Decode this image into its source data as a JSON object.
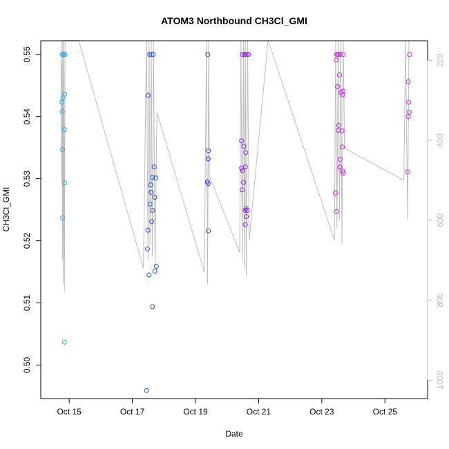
{
  "chart_data": {
    "type": "scatter",
    "title": "ATOM3 Northbound CH3Cl_GMI",
    "xlabel": "Date",
    "ylabel": "CH3Cl_GMI",
    "x_unit": "day of October 2017",
    "xlim": [
      14.1,
      26.35
    ],
    "ylim": [
      0.4946,
      0.5522
    ],
    "x_ticks": [
      15,
      17,
      19,
      21,
      23,
      25
    ],
    "x_tick_labels": [
      "Oct 15",
      "Oct 17",
      "Oct 19",
      "Oct 21",
      "Oct 23",
      "Oct 25"
    ],
    "y_ticks": [
      0.5,
      0.51,
      0.52,
      0.53,
      0.54,
      0.55
    ],
    "y_tick_labels": [
      "0.50",
      "0.51",
      "0.52",
      "0.53",
      "0.54",
      "0.55"
    ],
    "right_axis": {
      "lim": [
        1046,
        151
      ],
      "ticks": [
        200,
        400,
        600,
        800,
        1000
      ],
      "tick_labels": [
        "200",
        "400",
        "600",
        "800",
        "1000"
      ],
      "color": "#bdbdbd"
    },
    "grid": false,
    "legend": "none",
    "colors": {
      "profile_line": "#bdbdbd",
      "flight_1": "#29a9e8",
      "flight_2": "#1e50e8",
      "flight_3": "#3c2ee8",
      "flight_4": "#8a22e0",
      "flight_5": "#c81ee0",
      "flight_6": "#d81ccc"
    },
    "profile_line": [
      [
        14.74,
        200
      ],
      [
        14.76,
        500
      ],
      [
        14.77,
        150
      ],
      [
        14.79,
        700
      ],
      [
        14.8,
        150
      ],
      [
        14.82,
        760
      ],
      [
        14.83,
        150
      ],
      [
        14.85,
        780
      ],
      [
        14.87,
        150
      ],
      [
        15.3,
        150
      ],
      [
        17.35,
        720
      ],
      [
        17.45,
        150
      ],
      [
        17.5,
        700
      ],
      [
        17.53,
        150
      ],
      [
        17.56,
        660
      ],
      [
        17.6,
        150
      ],
      [
        17.63,
        690
      ],
      [
        17.67,
        150
      ],
      [
        17.72,
        710
      ],
      [
        17.78,
        330
      ],
      [
        19.28,
        730
      ],
      [
        19.35,
        150
      ],
      [
        19.38,
        760
      ],
      [
        19.42,
        150
      ],
      [
        19.44,
        490
      ],
      [
        20.4,
        680
      ],
      [
        20.44,
        150
      ],
      [
        20.48,
        700
      ],
      [
        20.52,
        150
      ],
      [
        20.55,
        720
      ],
      [
        20.58,
        150
      ],
      [
        20.61,
        740
      ],
      [
        20.65,
        150
      ],
      [
        20.7,
        650
      ],
      [
        21.3,
        150
      ],
      [
        23.4,
        650
      ],
      [
        23.44,
        150
      ],
      [
        23.48,
        620
      ],
      [
        23.52,
        150
      ],
      [
        23.56,
        600
      ],
      [
        23.6,
        150
      ],
      [
        23.64,
        660
      ],
      [
        23.68,
        150
      ],
      [
        23.72,
        420
      ],
      [
        25.6,
        500
      ],
      [
        25.65,
        150
      ],
      [
        25.72,
        600
      ],
      [
        25.76,
        150
      ]
    ],
    "series": [
      {
        "color_key": "flight_1",
        "points": [
          [
            14.78,
            0.55
          ],
          [
            14.8,
            0.55
          ],
          [
            14.84,
            0.55
          ],
          [
            14.87,
            0.55
          ],
          [
            14.77,
            0.5423
          ],
          [
            14.8,
            0.543
          ],
          [
            14.86,
            0.5436
          ],
          [
            14.78,
            0.5408
          ],
          [
            14.85,
            0.5379
          ],
          [
            14.79,
            0.5347
          ],
          [
            14.86,
            0.5293
          ],
          [
            14.79,
            0.5237
          ],
          [
            14.85,
            0.5037
          ]
        ]
      },
      {
        "color_key": "flight_2",
        "points": [
          [
            17.55,
            0.55
          ],
          [
            17.6,
            0.55
          ],
          [
            17.66,
            0.55
          ],
          [
            17.5,
            0.5434
          ],
          [
            17.69,
            0.5319
          ],
          [
            17.64,
            0.5302
          ],
          [
            17.74,
            0.5301
          ],
          [
            17.58,
            0.529
          ],
          [
            17.6,
            0.5278
          ],
          [
            17.71,
            0.527
          ],
          [
            17.56,
            0.5259
          ],
          [
            17.64,
            0.5249
          ],
          [
            17.61,
            0.5231
          ],
          [
            17.49,
            0.5217
          ],
          [
            17.48,
            0.5187
          ],
          [
            17.76,
            0.5159
          ],
          [
            17.71,
            0.5151
          ],
          [
            17.53,
            0.5145
          ],
          [
            17.64,
            0.5094
          ],
          [
            17.45,
            0.4959
          ]
        ]
      },
      {
        "color_key": "flight_3",
        "points": [
          [
            19.39,
            0.55
          ],
          [
            19.41,
            0.5345
          ],
          [
            19.4,
            0.5332
          ],
          [
            19.38,
            0.5295
          ],
          [
            19.4,
            0.5292
          ],
          [
            19.41,
            0.5216
          ]
        ]
      },
      {
        "color_key": "flight_4",
        "points": [
          [
            20.48,
            0.55
          ],
          [
            20.54,
            0.55
          ],
          [
            20.58,
            0.55
          ],
          [
            20.63,
            0.55
          ],
          [
            20.68,
            0.55
          ],
          [
            20.46,
            0.5361
          ],
          [
            20.53,
            0.5352
          ],
          [
            20.59,
            0.5342
          ],
          [
            20.58,
            0.5319
          ],
          [
            20.46,
            0.5317
          ],
          [
            20.49,
            0.5313
          ],
          [
            20.52,
            0.5294
          ],
          [
            20.48,
            0.5282
          ],
          [
            20.6,
            0.5252
          ],
          [
            20.64,
            0.5249
          ],
          [
            20.57,
            0.5249
          ],
          [
            20.61,
            0.5239
          ],
          [
            20.58,
            0.5226
          ]
        ]
      },
      {
        "color_key": "flight_5",
        "points": [
          [
            23.47,
            0.55
          ],
          [
            23.5,
            0.55
          ],
          [
            23.54,
            0.55
          ],
          [
            23.58,
            0.55
          ],
          [
            23.68,
            0.55
          ],
          [
            23.46,
            0.5491
          ],
          [
            23.56,
            0.5467
          ],
          [
            23.5,
            0.5448
          ],
          [
            23.68,
            0.5441
          ],
          [
            23.61,
            0.5439
          ],
          [
            23.66,
            0.5435
          ],
          [
            23.54,
            0.5386
          ],
          [
            23.52,
            0.5378
          ],
          [
            23.64,
            0.5377
          ],
          [
            23.65,
            0.5351
          ],
          [
            23.58,
            0.5331
          ],
          [
            23.57,
            0.5319
          ],
          [
            23.66,
            0.5312
          ],
          [
            23.68,
            0.5309
          ],
          [
            23.43,
            0.5277
          ],
          [
            23.47,
            0.5247
          ]
        ]
      },
      {
        "color_key": "flight_6",
        "points": [
          [
            25.78,
            0.55
          ],
          [
            25.74,
            0.5456
          ],
          [
            25.75,
            0.5423
          ],
          [
            25.77,
            0.5407
          ],
          [
            25.74,
            0.54
          ],
          [
            25.72,
            0.5311
          ]
        ]
      }
    ]
  }
}
